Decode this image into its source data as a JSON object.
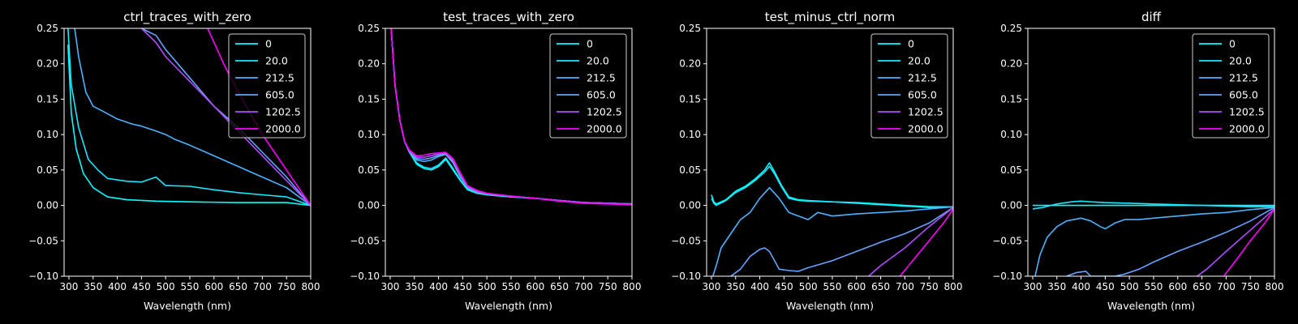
{
  "chart_data": [
    {
      "type": "line",
      "title": "ctrl_traces_with_zero",
      "xlabel": "Wavelength (nm)",
      "ylabel": "",
      "xlim": [
        290,
        800
      ],
      "ylim": [
        -0.1,
        0.25
      ],
      "xticks": [
        "300",
        "350",
        "400",
        "450",
        "500",
        "550",
        "600",
        "650",
        "700",
        "750",
        "800"
      ],
      "yticks": [
        "−0.10",
        "−0.05",
        "0.00",
        "0.05",
        "0.10",
        "0.15",
        "0.20",
        "0.25"
      ],
      "legend_position": "upper-right",
      "series": [
        {
          "name": "0",
          "color": "#00ffff",
          "x": [
            298,
            305,
            315,
            330,
            350,
            380,
            420,
            480,
            550,
            650,
            750,
            800
          ],
          "y": [
            0.227,
            0.13,
            0.08,
            0.045,
            0.025,
            0.012,
            0.008,
            0.006,
            0.005,
            0.004,
            0.004,
            0.0
          ]
        },
        {
          "name": "20.0",
          "color": "#19e6ff",
          "x": [
            298,
            305,
            320,
            340,
            360,
            380,
            400,
            420,
            450,
            480,
            500,
            550,
            600,
            650,
            700,
            750,
            800
          ],
          "y": [
            0.25,
            0.17,
            0.11,
            0.065,
            0.05,
            0.038,
            0.036,
            0.034,
            0.033,
            0.04,
            0.028,
            0.027,
            0.022,
            0.018,
            0.015,
            0.012,
            0.0
          ]
        },
        {
          "name": "212.5",
          "color": "#4cb3ff",
          "x": [
            312,
            320,
            335,
            350,
            370,
            400,
            430,
            450,
            480,
            500,
            520,
            550,
            600,
            650,
            700,
            750,
            800
          ],
          "y": [
            0.25,
            0.21,
            0.16,
            0.14,
            0.133,
            0.122,
            0.115,
            0.112,
            0.105,
            0.1,
            0.093,
            0.085,
            0.07,
            0.055,
            0.04,
            0.025,
            0.0
          ]
        },
        {
          "name": "605.0",
          "color": "#66a2ff",
          "x": [
            450,
            480,
            500,
            550,
            600,
            650,
            700,
            750,
            800
          ],
          "y": [
            0.25,
            0.24,
            0.22,
            0.18,
            0.14,
            0.11,
            0.075,
            0.04,
            0.0
          ]
        },
        {
          "name": "1202.5",
          "color": "#b34cff",
          "x": [
            450,
            480,
            500,
            550,
            600,
            650,
            700,
            750,
            800
          ],
          "y": [
            0.25,
            0.23,
            0.21,
            0.175,
            0.14,
            0.105,
            0.07,
            0.035,
            0.0
          ]
        },
        {
          "name": "2000.0",
          "color": "#ff00ff",
          "x": [
            587,
            620,
            650,
            700,
            750,
            800
          ],
          "y": [
            0.25,
            0.2,
            0.16,
            0.1,
            0.05,
            0.0
          ]
        }
      ]
    },
    {
      "type": "line",
      "title": "test_traces_with_zero",
      "xlabel": "Wavelength (nm)",
      "ylabel": "",
      "xlim": [
        290,
        800
      ],
      "ylim": [
        -0.1,
        0.25
      ],
      "xticks": [
        "300",
        "350",
        "400",
        "450",
        "500",
        "550",
        "600",
        "650",
        "700",
        "750",
        "800"
      ],
      "yticks": [
        "−0.10",
        "−0.05",
        "0.00",
        "0.05",
        "0.10",
        "0.15",
        "0.20",
        "0.25"
      ],
      "legend_position": "upper-right",
      "series": [
        {
          "name": "0",
          "color": "#00ffff",
          "x": [
            302,
            310,
            320,
            330,
            340,
            355,
            370,
            385,
            400,
            415,
            430,
            445,
            460,
            480,
            500,
            550,
            600,
            650,
            700,
            750,
            800
          ],
          "y": [
            0.25,
            0.17,
            0.12,
            0.09,
            0.075,
            0.058,
            0.052,
            0.05,
            0.055,
            0.065,
            0.05,
            0.035,
            0.022,
            0.017,
            0.015,
            0.012,
            0.01,
            0.007,
            0.004,
            0.003,
            0.002
          ]
        },
        {
          "name": "20.0",
          "color": "#19e6ff",
          "x": [
            302,
            310,
            320,
            330,
            340,
            355,
            370,
            385,
            400,
            415,
            430,
            445,
            460,
            480,
            500,
            550,
            600,
            650,
            700,
            750,
            800
          ],
          "y": [
            0.25,
            0.17,
            0.12,
            0.09,
            0.075,
            0.06,
            0.054,
            0.052,
            0.057,
            0.067,
            0.052,
            0.036,
            0.023,
            0.018,
            0.015,
            0.012,
            0.01,
            0.007,
            0.004,
            0.003,
            0.002
          ]
        },
        {
          "name": "212.5",
          "color": "#4cb3ff",
          "x": [
            302,
            310,
            320,
            330,
            340,
            355,
            370,
            385,
            400,
            415,
            430,
            445,
            460,
            480,
            500,
            550,
            600,
            650,
            700,
            750,
            800
          ],
          "y": [
            0.25,
            0.17,
            0.12,
            0.09,
            0.075,
            0.064,
            0.062,
            0.064,
            0.069,
            0.072,
            0.06,
            0.04,
            0.025,
            0.018,
            0.016,
            0.013,
            0.01,
            0.007,
            0.004,
            0.003,
            0.002
          ]
        },
        {
          "name": "605.0",
          "color": "#66a2ff",
          "x": [
            302,
            310,
            320,
            330,
            340,
            355,
            370,
            385,
            400,
            415,
            430,
            445,
            460,
            480,
            500,
            550,
            600,
            650,
            700,
            750,
            800
          ],
          "y": [
            0.25,
            0.17,
            0.12,
            0.09,
            0.076,
            0.066,
            0.065,
            0.067,
            0.071,
            0.073,
            0.062,
            0.042,
            0.026,
            0.019,
            0.016,
            0.013,
            0.01,
            0.007,
            0.004,
            0.003,
            0.002
          ]
        },
        {
          "name": "1202.5",
          "color": "#b34cff",
          "x": [
            302,
            310,
            320,
            330,
            340,
            355,
            370,
            385,
            400,
            415,
            430,
            445,
            460,
            480,
            500,
            550,
            600,
            650,
            700,
            750,
            800
          ],
          "y": [
            0.25,
            0.17,
            0.12,
            0.09,
            0.077,
            0.068,
            0.068,
            0.07,
            0.073,
            0.074,
            0.064,
            0.044,
            0.027,
            0.02,
            0.017,
            0.013,
            0.01,
            0.007,
            0.004,
            0.003,
            0.002
          ]
        },
        {
          "name": "2000.0",
          "color": "#ff00ff",
          "x": [
            302,
            310,
            320,
            330,
            340,
            355,
            370,
            385,
            400,
            415,
            430,
            445,
            460,
            480,
            500,
            550,
            600,
            650,
            700,
            750,
            800
          ],
          "y": [
            0.25,
            0.17,
            0.12,
            0.09,
            0.078,
            0.07,
            0.071,
            0.073,
            0.074,
            0.075,
            0.066,
            0.046,
            0.028,
            0.021,
            0.017,
            0.013,
            0.01,
            0.006,
            0.003,
            0.002,
            0.001
          ]
        }
      ]
    },
    {
      "type": "line",
      "title": "test_minus_ctrl_norm",
      "xlabel": "Wavelength (nm)",
      "ylabel": "",
      "xlim": [
        290,
        800
      ],
      "ylim": [
        -0.1,
        0.25
      ],
      "xticks": [
        "300",
        "350",
        "400",
        "450",
        "500",
        "550",
        "600",
        "650",
        "700",
        "750",
        "800"
      ],
      "yticks": [
        "−0.10",
        "−0.05",
        "0.00",
        "0.05",
        "0.10",
        "0.15",
        "0.20",
        "0.25"
      ],
      "legend_position": "upper-right",
      "series": [
        {
          "name": "0",
          "color": "#00ffff",
          "x": [
            300,
            305,
            310,
            330,
            350,
            370,
            390,
            410,
            420,
            430,
            445,
            460,
            480,
            500,
            550,
            600,
            650,
            700,
            750,
            800
          ],
          "y": [
            0.015,
            0.005,
            0.002,
            0.008,
            0.02,
            0.027,
            0.037,
            0.05,
            0.06,
            0.048,
            0.028,
            0.012,
            0.008,
            0.007,
            0.005,
            0.004,
            0.002,
            0.0,
            -0.002,
            -0.002
          ]
        },
        {
          "name": "20.0",
          "color": "#19e6ff",
          "x": [
            300,
            305,
            310,
            330,
            350,
            370,
            390,
            410,
            420,
            430,
            445,
            460,
            480,
            500,
            550,
            600,
            650,
            700,
            750,
            800
          ],
          "y": [
            0.01,
            0.003,
            0.0,
            0.007,
            0.018,
            0.025,
            0.035,
            0.047,
            0.055,
            0.045,
            0.026,
            0.01,
            0.007,
            0.006,
            0.005,
            0.003,
            0.001,
            -0.001,
            -0.003,
            -0.002
          ]
        },
        {
          "name": "212.5",
          "color": "#4cb3ff",
          "x": [
            303,
            310,
            320,
            340,
            360,
            380,
            400,
            420,
            440,
            460,
            480,
            500,
            520,
            550,
            600,
            650,
            700,
            750,
            800
          ],
          "y": [
            -0.1,
            -0.085,
            -0.06,
            -0.04,
            -0.02,
            -0.01,
            0.01,
            0.025,
            0.01,
            -0.01,
            -0.015,
            -0.02,
            -0.01,
            -0.015,
            -0.012,
            -0.01,
            -0.008,
            -0.005,
            -0.002
          ]
        },
        {
          "name": "605.0",
          "color": "#66a2ff",
          "x": [
            340,
            360,
            380,
            400,
            410,
            420,
            440,
            460,
            480,
            500,
            550,
            600,
            650,
            700,
            750,
            800
          ],
          "y": [
            -0.1,
            -0.09,
            -0.072,
            -0.062,
            -0.06,
            -0.065,
            -0.09,
            -0.092,
            -0.093,
            -0.088,
            -0.078,
            -0.065,
            -0.052,
            -0.04,
            -0.025,
            -0.003
          ]
        },
        {
          "name": "1202.5",
          "color": "#b34cff",
          "x": [
            625,
            650,
            700,
            750,
            800
          ],
          "y": [
            -0.1,
            -0.085,
            -0.06,
            -0.03,
            -0.003
          ]
        },
        {
          "name": "2000.0",
          "color": "#ff00ff",
          "x": [
            690,
            720,
            750,
            780,
            800
          ],
          "y": [
            -0.1,
            -0.075,
            -0.05,
            -0.025,
            -0.005
          ]
        }
      ]
    },
    {
      "type": "line",
      "title": "diff",
      "xlabel": "Wavelength (nm)",
      "ylabel": "",
      "xlim": [
        290,
        800
      ],
      "ylim": [
        -0.1,
        0.25
      ],
      "xticks": [
        "300",
        "350",
        "400",
        "450",
        "500",
        "550",
        "600",
        "650",
        "700",
        "750",
        "800"
      ],
      "yticks": [
        "−0.10",
        "−0.05",
        "0.00",
        "0.05",
        "0.10",
        "0.15",
        "0.20",
        "0.25"
      ],
      "legend_position": "upper-right",
      "series": [
        {
          "name": "0",
          "color": "#00ffff",
          "x": [
            300,
            800
          ],
          "y": [
            0.0,
            0.0
          ]
        },
        {
          "name": "20.0",
          "color": "#19e6ff",
          "x": [
            300,
            320,
            350,
            380,
            400,
            420,
            450,
            500,
            550,
            600,
            650,
            700,
            750,
            800
          ],
          "y": [
            -0.005,
            -0.003,
            0.002,
            0.005,
            0.006,
            0.005,
            0.004,
            0.003,
            0.002,
            0.001,
            0.0,
            -0.001,
            -0.002,
            -0.002
          ]
        },
        {
          "name": "212.5",
          "color": "#4cb3ff",
          "x": [
            305,
            315,
            330,
            350,
            370,
            400,
            420,
            440,
            450,
            470,
            490,
            520,
            550,
            600,
            650,
            700,
            750,
            800
          ],
          "y": [
            -0.1,
            -0.07,
            -0.045,
            -0.03,
            -0.022,
            -0.018,
            -0.022,
            -0.03,
            -0.033,
            -0.025,
            -0.02,
            -0.02,
            -0.018,
            -0.015,
            -0.012,
            -0.01,
            -0.006,
            -0.003
          ]
        },
        {
          "name": "605.0",
          "color": "#66a2ff",
          "x": [
            370,
            390,
            410,
            420,
            470,
            490,
            520,
            550,
            600,
            650,
            700,
            750,
            800
          ],
          "y": [
            -0.1,
            -0.095,
            -0.093,
            -0.1,
            -0.1,
            -0.097,
            -0.09,
            -0.08,
            -0.065,
            -0.052,
            -0.038,
            -0.022,
            -0.003
          ]
        },
        {
          "name": "1202.5",
          "color": "#b34cff",
          "x": [
            640,
            660,
            700,
            750,
            800
          ],
          "y": [
            -0.1,
            -0.09,
            -0.065,
            -0.035,
            -0.005
          ]
        },
        {
          "name": "2000.0",
          "color": "#ff00ff",
          "x": [
            695,
            720,
            750,
            780,
            800
          ],
          "y": [
            -0.1,
            -0.078,
            -0.05,
            -0.025,
            -0.005
          ]
        }
      ]
    }
  ]
}
